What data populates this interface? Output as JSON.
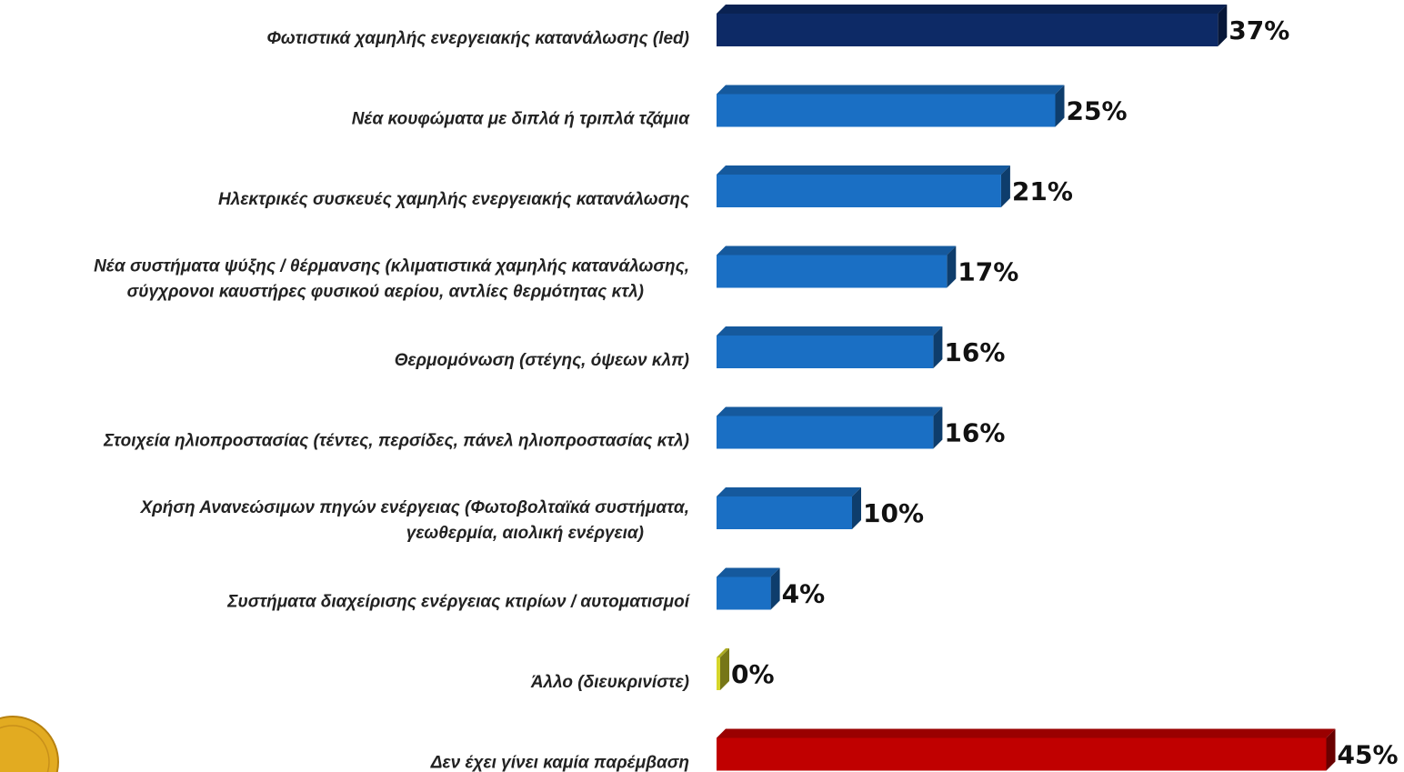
{
  "chart_data": {
    "type": "bar",
    "orientation": "horizontal",
    "title": "",
    "xlabel": "",
    "ylabel": "",
    "xlim": [
      0,
      45
    ],
    "grid": false,
    "legend": "none",
    "unit": "%",
    "categories": [
      [
        "Φωτιστικά χαμηλής ενεργειακής κατανάλωσης (led)"
      ],
      [
        "Νέα κουφώματα με διπλά ή τριπλά τζάμια"
      ],
      [
        "Ηλεκτρικές συσκευές χαμηλής ενεργειακής κατανάλωσης"
      ],
      [
        "Νέα συστήματα ψύξης / θέρμανσης (κλιματιστικά χαμηλής κατανάλωσης,",
        "σύγχρονοι καυστήρες φυσικού αερίου, αντλίες θερμότητας κτλ)"
      ],
      [
        "Θερμομόνωση (στέγης, όψεων κλπ)"
      ],
      [
        "Στοιχεία ηλιοπροστασίας (τέντες, περσίδες, πάνελ ηλιοπροστασίας κτλ)"
      ],
      [
        "Χρήση Ανανεώσιμων πηγών ενέργειας (Φωτοβολταϊκά συστήματα,",
        "γεωθερμία, αιολική ενέργεια)"
      ],
      [
        "Συστήματα διαχείρισης ενέργειας κτιρίων / αυτοματισμοί"
      ],
      [
        "Άλλο (διευκρινίστε)"
      ],
      [
        "Δεν έχει γίνει καμία παρέμβαση"
      ]
    ],
    "values": [
      37,
      25,
      21,
      17,
      16,
      16,
      10,
      4,
      0,
      45
    ],
    "value_labels": [
      "37%",
      "25%",
      "21%",
      "17%",
      "16%",
      "16%",
      "10%",
      "4%",
      "0%",
      "45%"
    ],
    "bar_colors": [
      "#0d2a66",
      "#1a6fc4",
      "#1a6fc4",
      "#1a6fc4",
      "#1a6fc4",
      "#1a6fc4",
      "#1a6fc4",
      "#1a6fc4",
      "#d6d62a",
      "#c00000"
    ]
  }
}
